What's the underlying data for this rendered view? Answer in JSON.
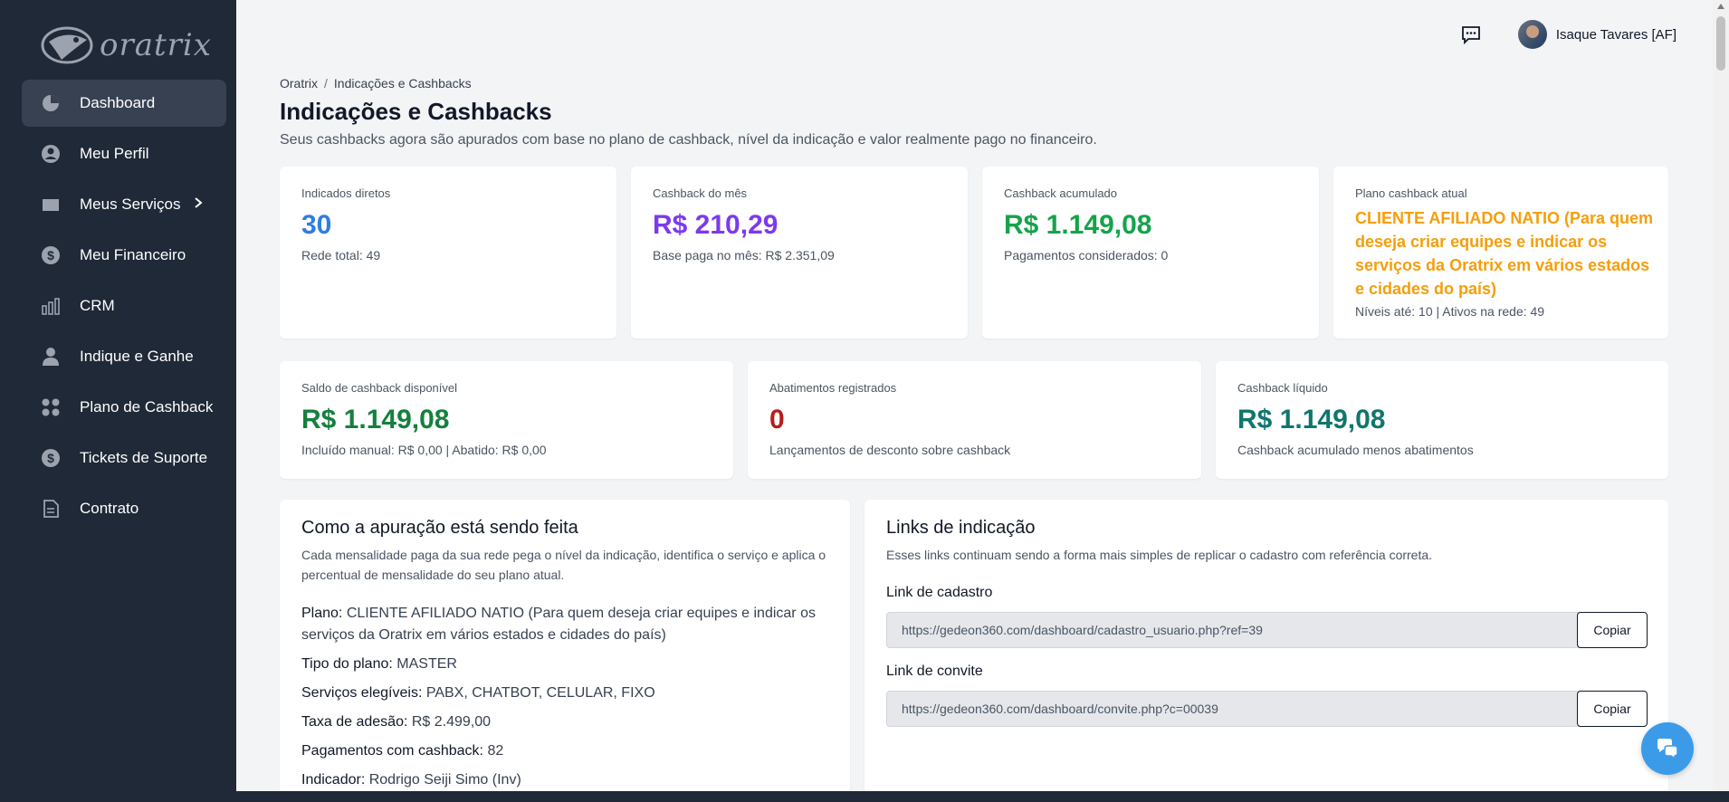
{
  "brand": {
    "logo_text": "oratrix"
  },
  "sidebar": {
    "items": [
      {
        "label": "Dashboard",
        "icon": "pie-chart-icon"
      },
      {
        "label": "Meu Perfil",
        "icon": "user-circle-icon"
      },
      {
        "label": "Meus Serviços",
        "icon": "folder-icon"
      },
      {
        "label": "Meu Financeiro",
        "icon": "dollar-circle-icon"
      },
      {
        "label": "CRM",
        "icon": "bar-chart-icon"
      },
      {
        "label": "Indique e Ganhe",
        "icon": "user-icon"
      },
      {
        "label": "Plano de Cashback",
        "icon": "grid-icon"
      },
      {
        "label": "Tickets de Suporte",
        "icon": "dollar-circle-icon"
      },
      {
        "label": "Contrato",
        "icon": "document-icon"
      }
    ]
  },
  "header": {
    "user_name": "Isaque Tavares [AF]"
  },
  "breadcrumb": {
    "root": "Oratrix",
    "sep": "/",
    "current": "Indicações e Cashbacks"
  },
  "page": {
    "title": "Indicações e Cashbacks",
    "subtitle": "Seus cashbacks agora são apurados com base no plano de cashback, nível da indicação e valor realmente pago no financeiro."
  },
  "stats_top": [
    {
      "label": "Indicados diretos",
      "value": "30",
      "sub": "Rede total: 49"
    },
    {
      "label": "Cashback do mês",
      "value": "R$ 210,29",
      "sub": "Base paga no mês: R$ 2.351,09"
    },
    {
      "label": "Cashback acumulado",
      "value": "R$ 1.149,08",
      "sub": "Pagamentos considerados: 0"
    },
    {
      "label": "Plano cashback atual",
      "value": "CLIENTE AFILIADO NATIO (Para quem deseja criar equipes e indicar os serviços da Oratrix em vários estados e cidades do país)",
      "sub": "Níveis até: 10 | Ativos na rede: 49"
    }
  ],
  "stats_mid": [
    {
      "label": "Saldo de cashback disponível",
      "value": "R$ 1.149,08",
      "sub": "Incluído manual: R$ 0,00 | Abatido: R$ 0,00"
    },
    {
      "label": "Abatimentos registrados",
      "value": "0",
      "sub": "Lançamentos de desconto sobre cashback"
    },
    {
      "label": "Cashback líquido",
      "value": "R$ 1.149,08",
      "sub": "Cashback acumulado menos abatimentos"
    }
  ],
  "apuracao": {
    "title": "Como a apuração está sendo feita",
    "desc": "Cada mensalidade paga da sua rede pega o nível da indicação, identifica o serviço e aplica o percentual de mensalidade do seu plano atual.",
    "lines": [
      {
        "key": "Plano:",
        "value": "CLIENTE AFILIADO NATIO (Para quem deseja criar equipes e indicar os serviços da Oratrix em vários estados e cidades do país)"
      },
      {
        "key": "Tipo do plano:",
        "value": "MASTER"
      },
      {
        "key": "Serviços elegíveis:",
        "value": "PABX, CHATBOT, CELULAR, FIXO"
      },
      {
        "key": "Taxa de adesão:",
        "value": "R$ 2.499,00"
      },
      {
        "key": "Pagamentos com cashback:",
        "value": "82"
      },
      {
        "key": "Indicador:",
        "value": "Rodrigo Seiji Simo (Inv)"
      }
    ]
  },
  "links": {
    "title": "Links de indicação",
    "desc": "Esses links continuam sendo a forma mais simples de replicar o cadastro com referência correta.",
    "cadastro_label": "Link de cadastro",
    "cadastro_value": "https://gedeon360.com/dashboard/cadastro_usuario.php?ref=39",
    "convite_label": "Link de convite",
    "convite_value": "https://gedeon360.com/dashboard/convite.php?c=00039",
    "copy_label": "Copiar"
  },
  "colors": {
    "blue": "#2f7ee0",
    "purple": "#7c3aed",
    "green": "#16a34a",
    "orange": "#f59e0b",
    "teal": "#15803d",
    "red": "#b91c1c",
    "dark_teal": "#0f766e"
  }
}
